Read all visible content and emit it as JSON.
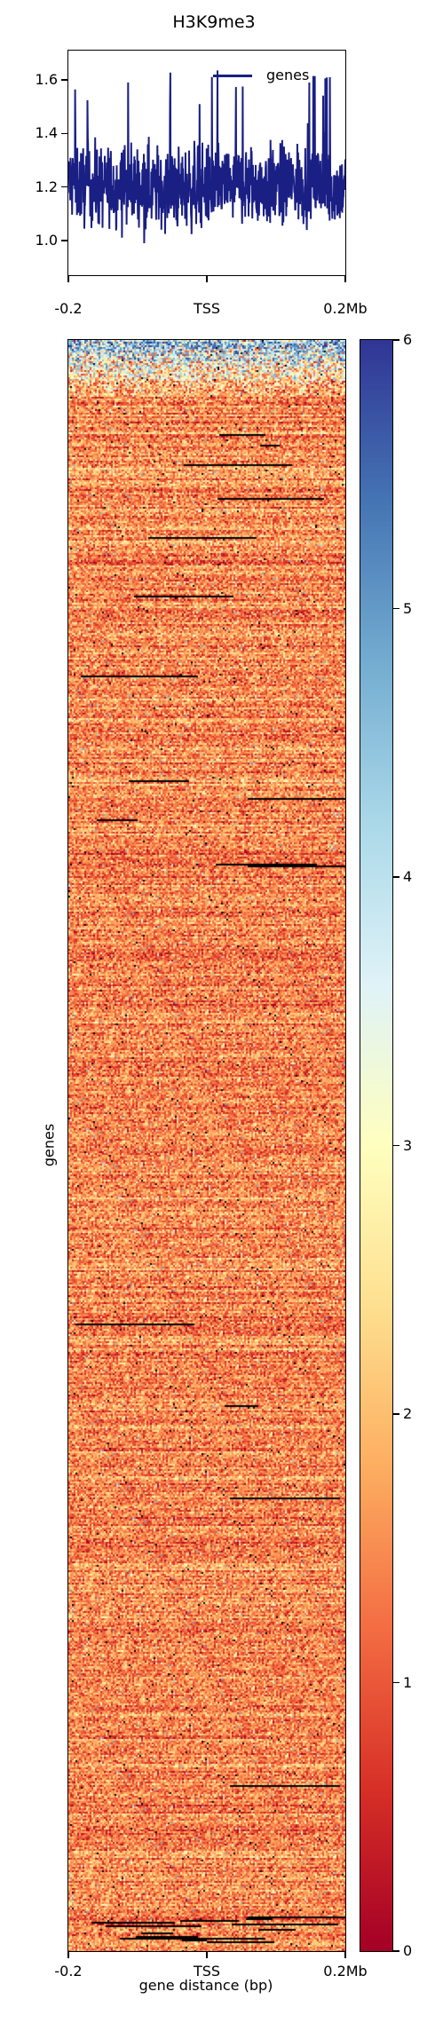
{
  "chart_data": [
    {
      "type": "line",
      "title": "H3K9me3",
      "legend": {
        "entries": [
          "genes"
        ],
        "placement": "upper-right"
      },
      "xlabel": "",
      "ylabel": "",
      "x_ticks": [
        "-0.2",
        "TSS",
        "0.2Mb"
      ],
      "x_range_mb": [
        -0.2,
        0.2
      ],
      "y_ticks": [
        "1.0",
        "1.2",
        "1.4",
        "1.6"
      ],
      "ylim": [
        0.87,
        1.71
      ],
      "series": [
        {
          "name": "genes",
          "color": "#1a1f84",
          "summary": {
            "baseline": 1.2,
            "min": 0.91,
            "max": 1.68
          },
          "x": [
            -0.2,
            -0.15,
            -0.1,
            -0.05,
            0.0,
            0.05,
            0.1,
            0.15,
            0.2
          ],
          "values": [
            1.22,
            1.2,
            1.21,
            1.19,
            1.2,
            1.21,
            1.2,
            1.22,
            1.19
          ]
        }
      ]
    },
    {
      "type": "heatmap",
      "xlabel": "gene distance (bp)",
      "ylabel": "genes",
      "x_ticks": [
        "-0.2",
        "TSS",
        "0.2Mb"
      ],
      "colorbar": {
        "ticks": [
          "0",
          "1",
          "2",
          "3",
          "4",
          "5",
          "6"
        ],
        "range": [
          0,
          6
        ],
        "colormap": "RdYlBu",
        "stops": [
          "#a50026",
          "#d73027",
          "#f46d43",
          "#fdae61",
          "#fee090",
          "#ffffbf",
          "#e0f3f8",
          "#abd9e9",
          "#74add1",
          "#4575b4",
          "#313695"
        ]
      },
      "value_summary": {
        "typical_min": 0.3,
        "typical_max": 2.8,
        "mode": 1.5,
        "high_rows_at_top": true
      }
    }
  ]
}
